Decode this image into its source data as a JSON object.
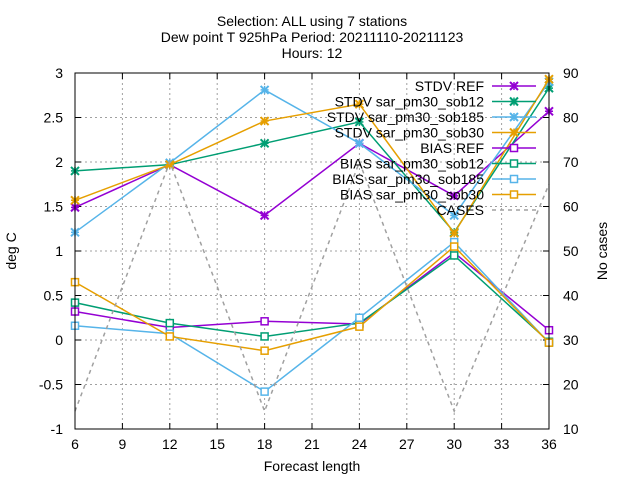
{
  "chart_data": {
    "type": "line",
    "title_lines": [
      "Selection: ALL using      7 stations",
      "Dew point T 925hPa   Period: 20211110-20211123",
      "Hours: 12"
    ],
    "xlabel": "Forecast length",
    "ylabel": "deg C",
    "y2label": "No cases",
    "xlim": [
      6,
      36
    ],
    "ylim": [
      -1,
      3
    ],
    "y2lim": [
      10,
      90
    ],
    "xticks": [
      6,
      9,
      12,
      15,
      18,
      21,
      24,
      27,
      30,
      33,
      36
    ],
    "yticks": [
      -1,
      -0.5,
      0,
      0.5,
      1,
      1.5,
      2,
      2.5,
      3
    ],
    "y2ticks": [
      10,
      20,
      30,
      40,
      50,
      60,
      70,
      80,
      90
    ],
    "grid": true,
    "legend_position": "top-right",
    "x": [
      6,
      12,
      18,
      24,
      30,
      36
    ],
    "series": [
      {
        "name": "STDV REF",
        "axis": "y",
        "color": "#9400d3",
        "marker": "x",
        "dashed": false,
        "values": [
          1.49,
          1.97,
          1.4,
          2.21,
          1.62,
          2.57
        ]
      },
      {
        "name": "STDV sar_pm30_sob12",
        "axis": "y",
        "color": "#009e73",
        "marker": "x",
        "dashed": false,
        "values": [
          1.9,
          1.97,
          2.21,
          2.45,
          1.21,
          2.83
        ]
      },
      {
        "name": "STDV sar_pm30_sob185",
        "axis": "y",
        "color": "#56b4e9",
        "marker": "x",
        "dashed": false,
        "values": [
          1.21,
          1.99,
          2.81,
          2.21,
          1.4,
          2.9
        ]
      },
      {
        "name": "STDV sar_pm30_sob30",
        "axis": "y",
        "color": "#e69f00",
        "marker": "x",
        "dashed": false,
        "values": [
          1.57,
          1.97,
          2.46,
          2.65,
          1.2,
          2.93
        ]
      },
      {
        "name": "BIAS REF",
        "axis": "y",
        "color": "#9400d3",
        "marker": "square",
        "dashed": false,
        "values": [
          0.32,
          0.14,
          0.21,
          0.18,
          0.98,
          0.11
        ]
      },
      {
        "name": "BIAS sar_pm30_sob12",
        "axis": "y",
        "color": "#009e73",
        "marker": "square",
        "dashed": false,
        "values": [
          0.42,
          0.19,
          0.04,
          0.19,
          0.95,
          -0.02
        ]
      },
      {
        "name": "BIAS sar_pm30_sob185",
        "axis": "y",
        "color": "#56b4e9",
        "marker": "square",
        "dashed": false,
        "values": [
          0.16,
          0.07,
          -0.58,
          0.25,
          1.1,
          -0.03
        ]
      },
      {
        "name": "BIAS sar_pm30_sob30",
        "axis": "y",
        "color": "#e69f00",
        "marker": "square",
        "dashed": false,
        "values": [
          0.65,
          0.04,
          -0.12,
          0.15,
          1.05,
          -0.03
        ]
      },
      {
        "name": "CASES",
        "axis": "y2",
        "color": "#a0a0a0",
        "marker": "none",
        "dashed": true,
        "values": [
          14,
          70,
          14,
          70,
          14,
          65
        ]
      }
    ]
  }
}
